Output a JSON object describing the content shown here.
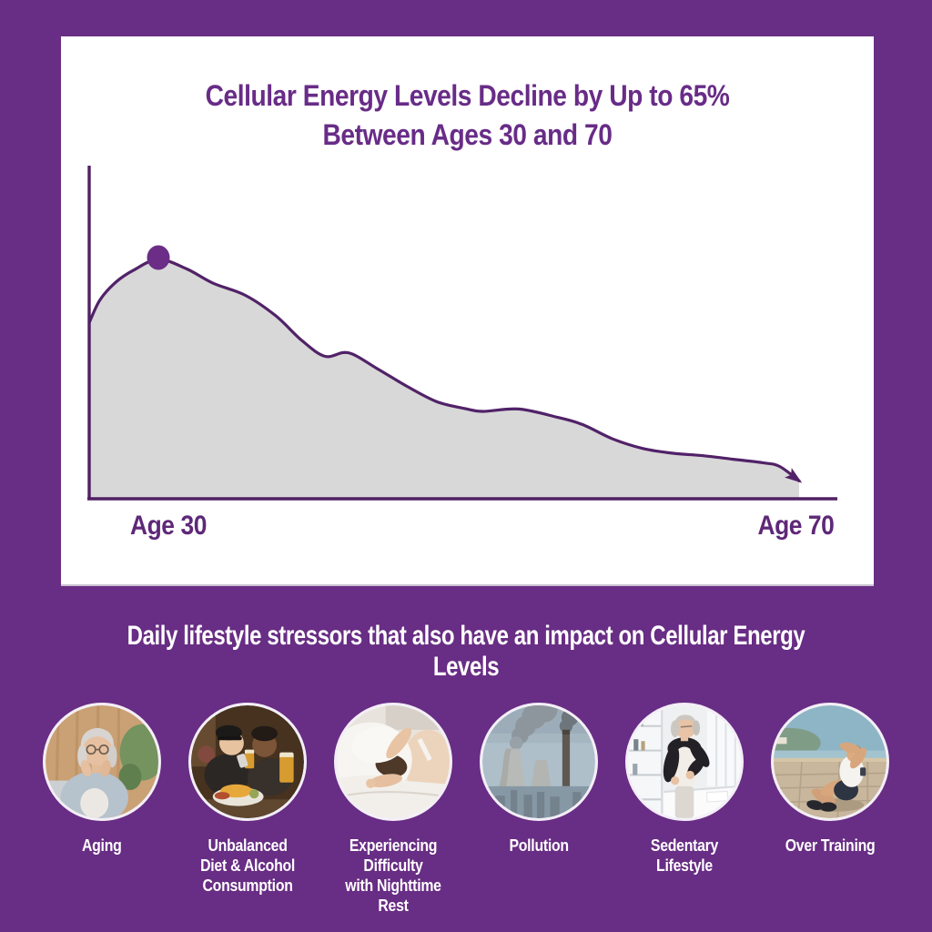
{
  "colors": {
    "background": "#682d84",
    "card_background": "#ffffff",
    "title_text": "#682c87",
    "curve_stroke": "#512268",
    "area_fill": "#d8d8d8",
    "peak_dot": "#6b2d86",
    "axis": "#4f2163",
    "axis_label_text": "#5e2878",
    "heading_text": "#ffffff",
    "circle_ring": "#f3eef7"
  },
  "chart_card": {
    "title_line1": "Cellular Energy Levels Decline by Up to 65%",
    "title_line2": "Between Ages 30 and 70",
    "x_label_left": "Age 30",
    "x_label_right": "Age 70"
  },
  "chart_data": {
    "type": "area",
    "title": "Cellular Energy Levels Decline by Up to 65% Between Ages 30 and 70",
    "xlabel_left": "Age 30",
    "xlabel_right": "Age 70",
    "x_range": [
      30,
      70
    ],
    "y_range": [
      0,
      100
    ],
    "grid": false,
    "legend": false,
    "peak_marker": {
      "age": 33.9,
      "value": 100
    },
    "end_arrow": true,
    "note": "stylized unlabeled y-axis; values are relative energy (peak = 100) read from the drawing",
    "x": [
      30,
      30.6,
      31.5,
      32.5,
      33.9,
      35.5,
      37,
      38.8,
      40.5,
      42,
      43.3,
      44.6,
      46.2,
      47.9,
      49.6,
      51.3,
      52.2,
      54.2,
      56.4,
      57.8,
      59.5,
      61.2,
      62.9,
      64.6,
      66.3,
      68,
      68.9,
      70
    ],
    "y": [
      73.5,
      83,
      90.5,
      95.5,
      100,
      96,
      90,
      85,
      76.5,
      66,
      59.5,
      61,
      54.5,
      47,
      40.5,
      37.5,
      36.5,
      37.5,
      34,
      31,
      25,
      21,
      19,
      18,
      16.5,
      15,
      13.5,
      7.5
    ]
  },
  "section_heading": "Daily lifestyle stressors that also have an impact on Cellular Energy Levels",
  "stressors": [
    {
      "label": "Aging",
      "image": "elderly woman with glasses resting hands by her face"
    },
    {
      "label": "Unbalanced\nDiet & Alcohol\nConsumption",
      "image": "two people at a table with fried food and beer"
    },
    {
      "label": "Experiencing Difficulty\nwith Nighttime Rest",
      "image": "woman in bed hiding her head under a pillow"
    },
    {
      "label": "Pollution",
      "image": "power plant cooling towers emitting smoke"
    },
    {
      "label": "Sedentary Lifestyle",
      "image": "office worker standing holding her lower back"
    },
    {
      "label": "Over Training",
      "image": "exhausted man sitting on pavement by the water"
    }
  ]
}
